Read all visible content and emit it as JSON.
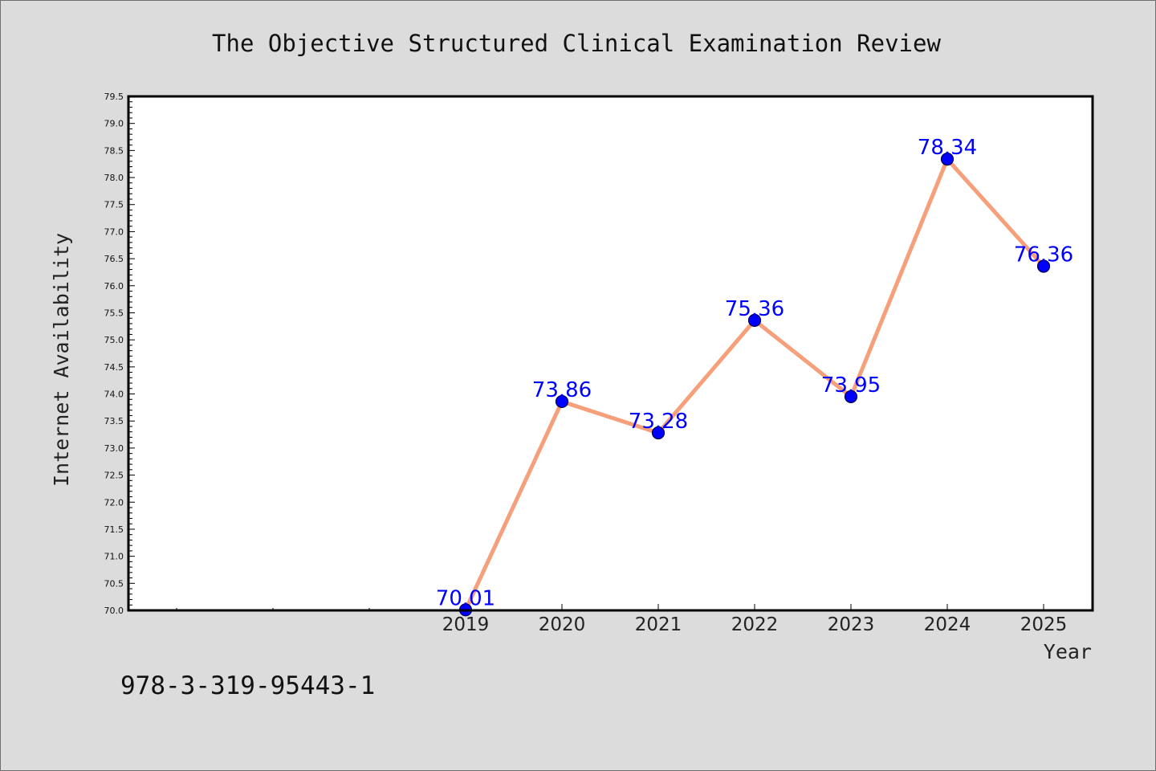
{
  "chart_data": {
    "type": "line",
    "title": "The Objective Structured Clinical Examination Review",
    "xlabel": "Year",
    "ylabel": "Internet Availability",
    "categories": [
      "2019",
      "2020",
      "2021",
      "2022",
      "2023",
      "2024",
      "2025"
    ],
    "series": [
      {
        "values": [
          70.01,
          73.86,
          73.28,
          75.36,
          73.95,
          78.34,
          76.36
        ],
        "color": "#f5a07a",
        "marker_color": "#0000ff"
      }
    ],
    "data_labels": [
      "70.01",
      "73.86",
      "73.28",
      "75.36",
      "73.95",
      "78.34",
      "76.36"
    ],
    "ylim": [
      70.0,
      79.5
    ],
    "yticks": [
      "70.0",
      "70.5",
      "71.0",
      "71.5",
      "72.0",
      "72.5",
      "73.0",
      "73.5",
      "74.0",
      "74.5",
      "75.0",
      "75.5",
      "76.0",
      "76.5",
      "77.0",
      "77.5",
      "78.0",
      "78.5",
      "79.0",
      "79.5"
    ],
    "grid": false,
    "legend": "none"
  },
  "footer": {
    "code": "978-3-319-95443-1"
  },
  "colors": {
    "background": "#dcdcdc",
    "plot_background": "#ffffff",
    "line": "#f5a07a",
    "marker": "#0000ff",
    "data_label": "#0000ff"
  }
}
